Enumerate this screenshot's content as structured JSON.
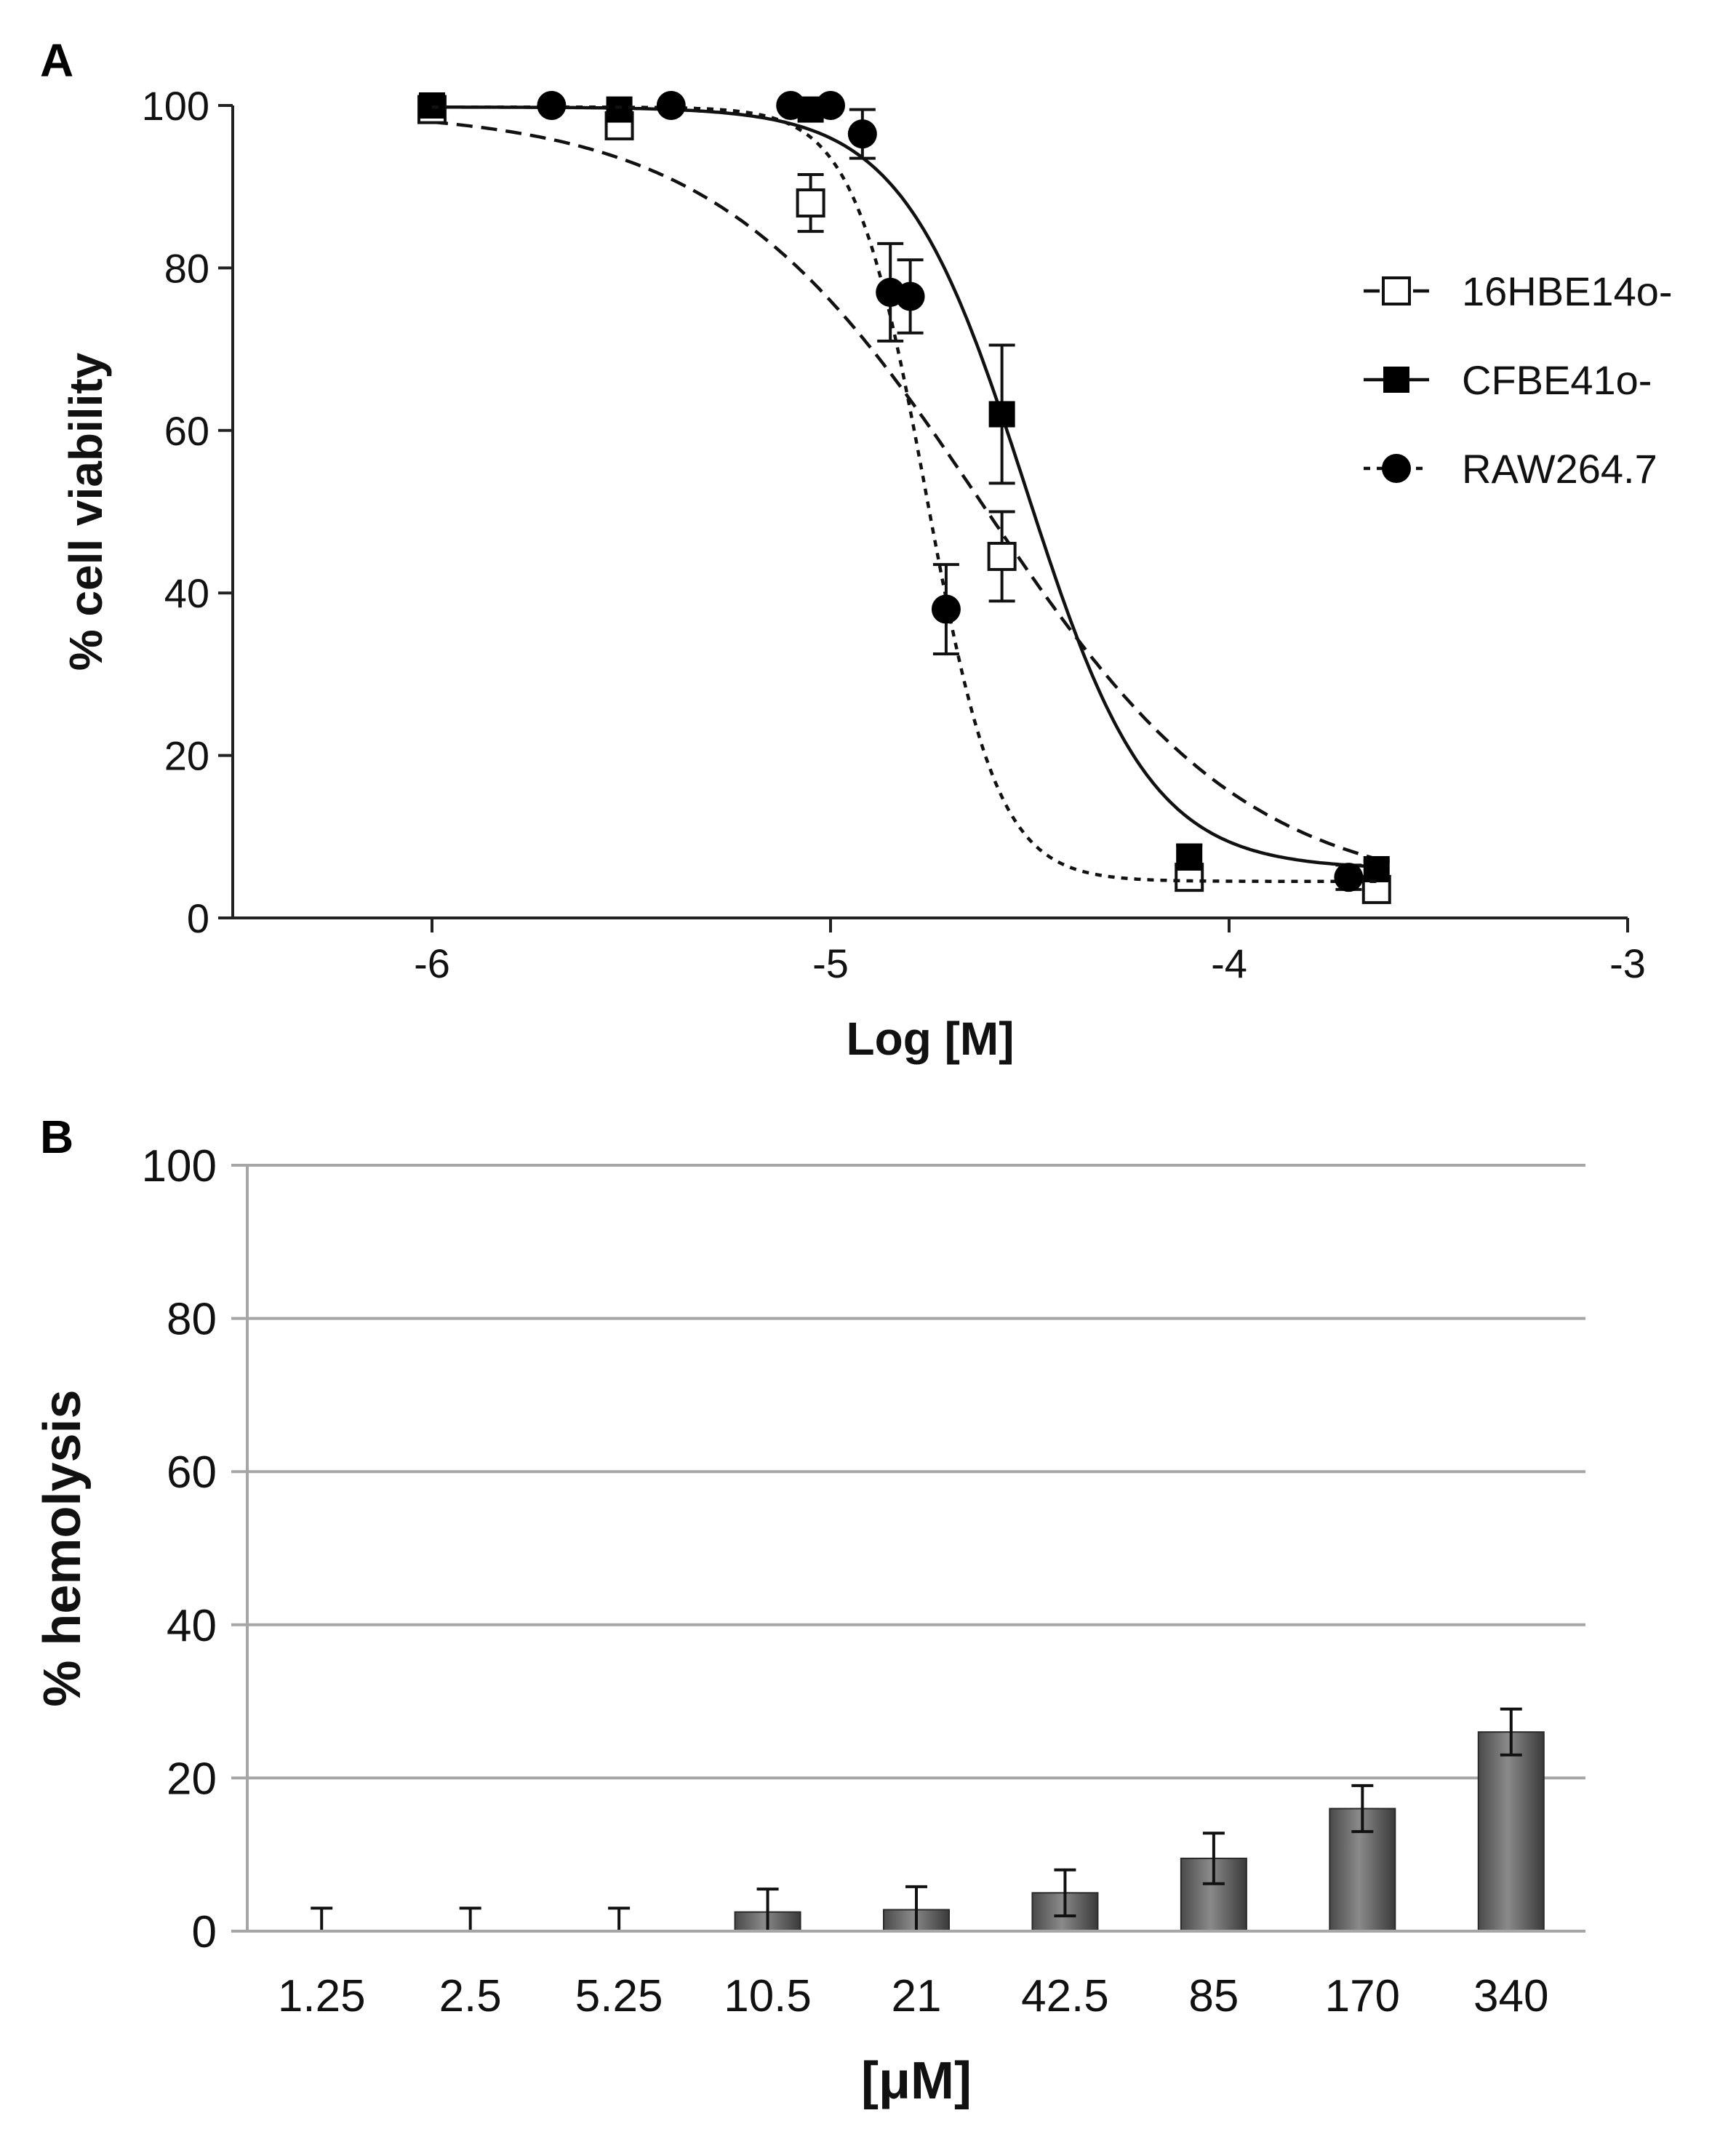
{
  "chart_data": [
    {
      "panel": "A",
      "type": "line",
      "xlabel": "Log [M]",
      "ylabel": "% cell viability",
      "xlim": [
        -6.5,
        -3
      ],
      "ylim": [
        0,
        100
      ],
      "xticks": [
        -6,
        -5,
        -4,
        -3
      ],
      "yticks": [
        0,
        20,
        40,
        60,
        80,
        100
      ],
      "legend_position": "right",
      "series": [
        {
          "name": "16HBE14o-",
          "marker": "open-square",
          "line_style": "dashed",
          "x": [
            -6.0,
            -5.53,
            -5.05,
            -4.57,
            -4.1,
            -3.63
          ],
          "y": [
            99.5,
            97.5,
            88.0,
            44.5,
            5.0,
            3.5
          ],
          "err": [
            0.5,
            1.5,
            3.5,
            5.5,
            1.0,
            1.0
          ],
          "fit": {
            "top": 99.5,
            "bottom": 2.5,
            "logEC50": -4.62,
            "hill": -1.3
          }
        },
        {
          "name": "CFBE41o-",
          "marker": "filled-square",
          "line_style": "solid",
          "x": [
            -6.0,
            -5.53,
            -5.05,
            -4.57,
            -4.1,
            -3.63
          ],
          "y": [
            100,
            99.5,
            99.5,
            62.0,
            7.5,
            6.0
          ],
          "err": [
            0.5,
            0.5,
            0.5,
            8.5,
            1.5,
            1.0
          ],
          "fit": {
            "top": 99.8,
            "bottom": 6.0,
            "logEC50": -4.51,
            "hill": -2.8
          }
        },
        {
          "name": "RAW264.7",
          "marker": "filled-circle",
          "line_style": "dotted",
          "x": [
            -5.7,
            -5.4,
            -5.1,
            -5.0,
            -4.92,
            -4.85,
            -4.8,
            -4.71,
            -3.7
          ],
          "y": [
            100,
            100,
            100,
            100,
            96.5,
            77.0,
            76.5,
            38.0,
            5.0
          ],
          "err": [
            0.5,
            0.5,
            0.5,
            0.5,
            3.0,
            6.0,
            4.5,
            5.5,
            1.5
          ],
          "fit": {
            "top": 99.8,
            "bottom": 4.5,
            "logEC50": -4.76,
            "hill": -4.8
          }
        }
      ]
    },
    {
      "panel": "B",
      "type": "bar",
      "xlabel": "[μM]",
      "ylabel": "% hemolysis",
      "ylim": [
        0,
        100
      ],
      "yticks": [
        0,
        20,
        40,
        60,
        80,
        100
      ],
      "grid": true,
      "categories": [
        "1.25",
        "2.5",
        "5.25",
        "10.5",
        "21",
        "42.5",
        "85",
        "170",
        "340"
      ],
      "values": [
        0,
        0,
        0,
        2.5,
        2.8,
        5.0,
        9.5,
        16.0,
        26.0
      ],
      "errors": [
        3.0,
        3.0,
        3.0,
        3.0,
        3.0,
        3.0,
        3.3,
        3.0,
        3.0
      ]
    }
  ]
}
